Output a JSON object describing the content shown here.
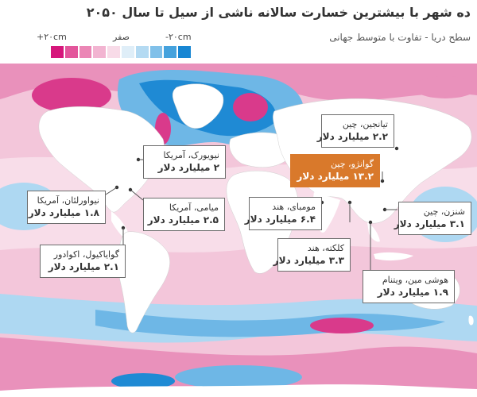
{
  "title": "ده شهر با بیشترین خسارت سالانه ناشی از سیل تا سال ۲۰۵۰",
  "subtitle": "سطح دریا - تفاوت با متوسط جهانی",
  "legend": {
    "high_label": "+۲۰cm",
    "mid_label": "صفر",
    "low_label": "-۲۰cm",
    "colors": [
      "#d6167b",
      "#e3559b",
      "#eb86b5",
      "#f2b4d1",
      "#f8dbe8",
      "#dfeef8",
      "#b4daf2",
      "#80c0e9",
      "#45a2dd",
      "#1886d3"
    ]
  },
  "map_colors": {
    "ocean_base": "#f3c6da",
    "ocean_light": "#f8dde9",
    "ocean_pink": "#e991bb",
    "ocean_magenta": "#d93a8b",
    "ocean_blue": "#6eb7e6",
    "ocean_lightblue": "#aed8f2",
    "ocean_deep_blue": "#1f8ad4",
    "land": "#ffffff",
    "highlight": "#d9792b"
  },
  "callouts": [
    {
      "id": "tianjin",
      "city": "تیانجین، چین",
      "value": "۲.۲ میلیارد دلار"
    },
    {
      "id": "guangzhou",
      "city": "گوانژو، چین",
      "value": "۱۳.۲ میلیارد دلار",
      "highlight": true
    },
    {
      "id": "newyork",
      "city": "نیویورک، آمریکا",
      "value": "۲ میلیارد دلار"
    },
    {
      "id": "miami",
      "city": "میامی، آمریکا",
      "value": "۲.۵ میلیارد دلار"
    },
    {
      "id": "neworleans",
      "city": "نیواورلئان، آمریکا",
      "value": "۱.۸ میلیارد دلار"
    },
    {
      "id": "guayaquil",
      "city": "گوایاکیول، اکوادور",
      "value": "۲.۱ میلیارد دلار"
    },
    {
      "id": "mumbai",
      "city": "مومبای، هند",
      "value": "۶.۴ میلیارد دلار"
    },
    {
      "id": "kolkata",
      "city": "کلکته، هند",
      "value": "۳.۳ میلیارد دلار"
    },
    {
      "id": "shenzhen",
      "city": "شنزن، چین",
      "value": "۳.۱ میلیارد دلار"
    },
    {
      "id": "hochiminh",
      "city": "هوشی مین، ویتنام",
      "value": "۱.۹ میلیارد دلار"
    }
  ]
}
